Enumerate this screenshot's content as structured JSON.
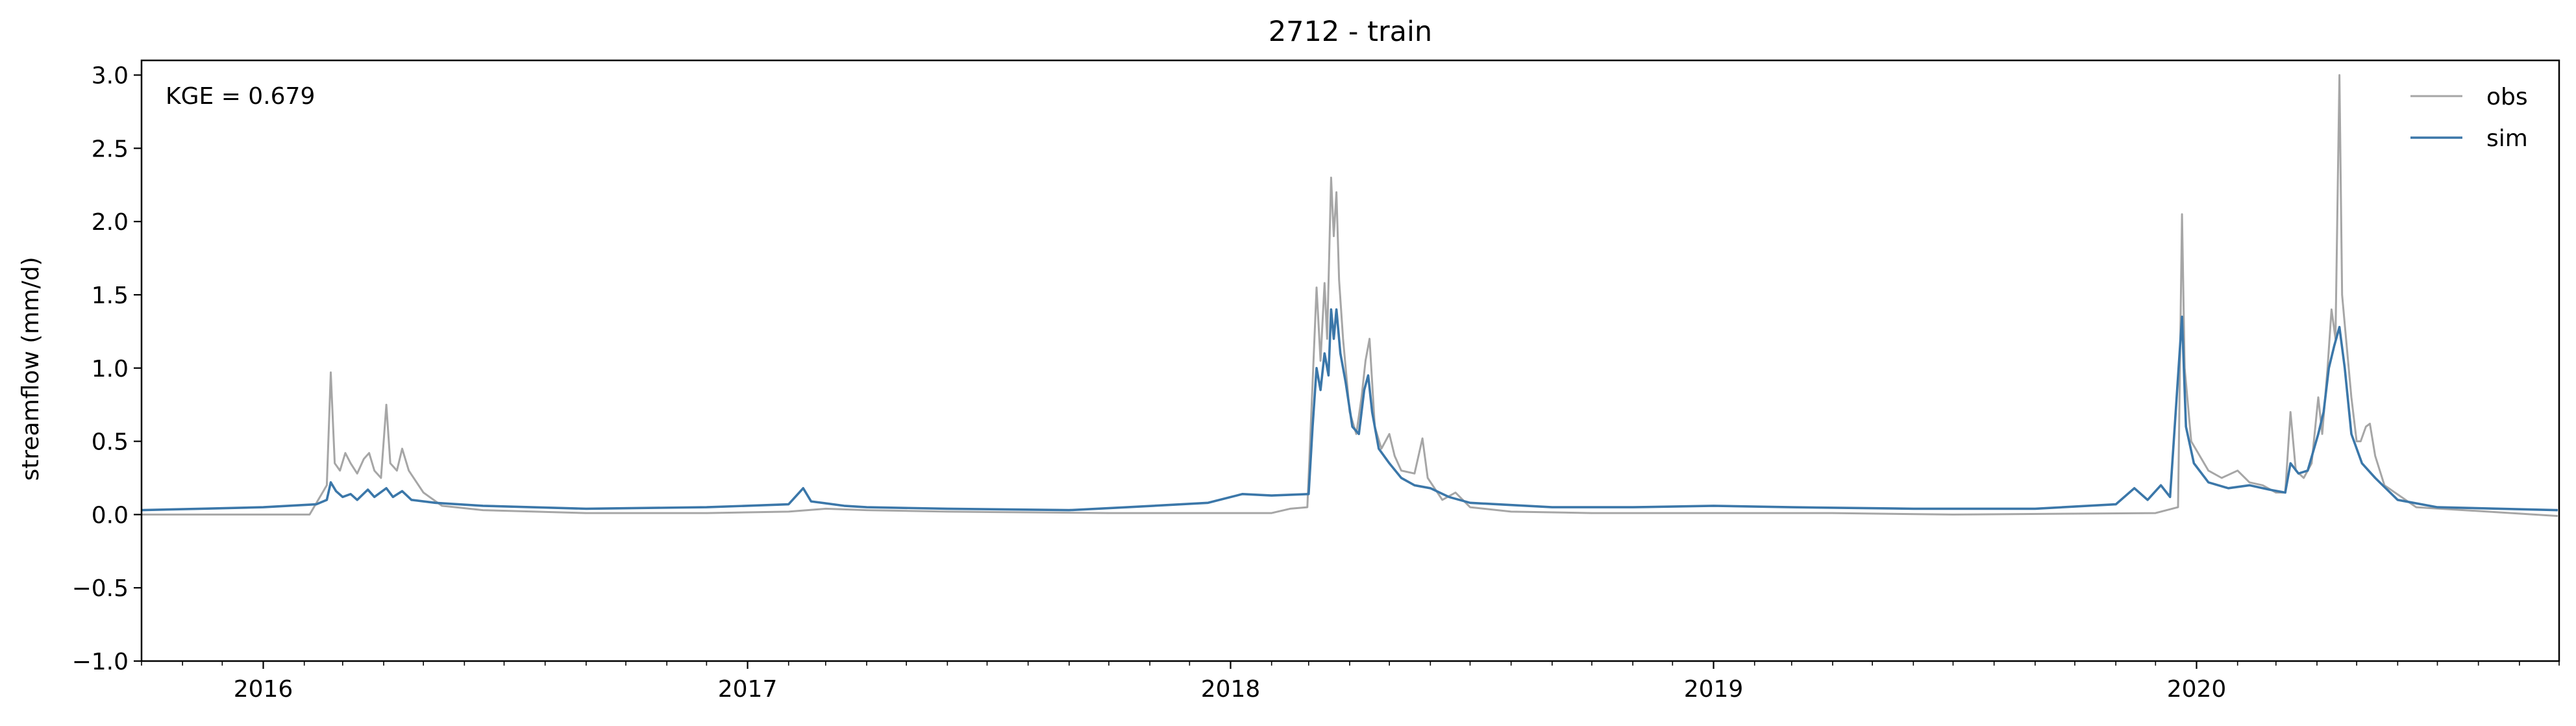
{
  "chart_data": {
    "type": "line",
    "title": "2712 - train",
    "xlabel": "",
    "ylabel": "streamflow (mm/d)",
    "annotation": "KGE = 0.679",
    "xlim": [
      "2015-10-01",
      "2020-09-30"
    ],
    "ylim": [
      -1.0,
      3.1
    ],
    "yticks": [
      -1.0,
      -0.5,
      0.0,
      0.5,
      1.0,
      1.5,
      2.0,
      2.5,
      3.0
    ],
    "ytick_labels": [
      "−1.0",
      "−0.5",
      "0.0",
      "0.5",
      "1.0",
      "1.5",
      "2.0",
      "2.5",
      "3.0"
    ],
    "xticks": [
      "2016-01-01",
      "2017-01-01",
      "2018-01-01",
      "2019-01-01",
      "2020-01-01"
    ],
    "xtick_labels": [
      "2016",
      "2017",
      "2018",
      "2019",
      "2020"
    ],
    "minor_xticks_monthly": true,
    "grid": false,
    "legend_position": "top-right",
    "series": [
      {
        "name": "obs",
        "color": "#a6a6a6",
        "points": [
          [
            "2015-10-01",
            0.0
          ],
          [
            "2016-01-20",
            0.0
          ],
          [
            "2016-02-05",
            0.0
          ],
          [
            "2016-02-18",
            0.2
          ],
          [
            "2016-02-21",
            0.97
          ],
          [
            "2016-02-24",
            0.35
          ],
          [
            "2016-02-28",
            0.3
          ],
          [
            "2016-03-03",
            0.42
          ],
          [
            "2016-03-07",
            0.35
          ],
          [
            "2016-03-12",
            0.28
          ],
          [
            "2016-03-17",
            0.38
          ],
          [
            "2016-03-21",
            0.42
          ],
          [
            "2016-03-25",
            0.3
          ],
          [
            "2016-03-30",
            0.25
          ],
          [
            "2016-04-03",
            0.75
          ],
          [
            "2016-04-06",
            0.35
          ],
          [
            "2016-04-11",
            0.3
          ],
          [
            "2016-04-15",
            0.45
          ],
          [
            "2016-04-20",
            0.3
          ],
          [
            "2016-05-01",
            0.15
          ],
          [
            "2016-05-15",
            0.06
          ],
          [
            "2016-06-15",
            0.03
          ],
          [
            "2016-09-01",
            0.01
          ],
          [
            "2016-12-01",
            0.01
          ],
          [
            "2017-02-01",
            0.02
          ],
          [
            "2017-03-01",
            0.04
          ],
          [
            "2017-04-01",
            0.03
          ],
          [
            "2017-06-01",
            0.02
          ],
          [
            "2017-10-01",
            0.01
          ],
          [
            "2018-01-01",
            0.01
          ],
          [
            "2018-02-01",
            0.01
          ],
          [
            "2018-02-15",
            0.04
          ],
          [
            "2018-02-28",
            0.05
          ],
          [
            "2018-03-04",
            0.9
          ],
          [
            "2018-03-07",
            1.55
          ],
          [
            "2018-03-10",
            1.05
          ],
          [
            "2018-03-13",
            1.58
          ],
          [
            "2018-03-15",
            1.2
          ],
          [
            "2018-03-18",
            2.3
          ],
          [
            "2018-03-20",
            1.9
          ],
          [
            "2018-03-22",
            2.2
          ],
          [
            "2018-03-24",
            1.6
          ],
          [
            "2018-03-27",
            1.2
          ],
          [
            "2018-04-01",
            0.7
          ],
          [
            "2018-04-06",
            0.55
          ],
          [
            "2018-04-10",
            0.8
          ],
          [
            "2018-04-13",
            1.05
          ],
          [
            "2018-04-16",
            1.2
          ],
          [
            "2018-04-20",
            0.6
          ],
          [
            "2018-04-25",
            0.45
          ],
          [
            "2018-05-01",
            0.55
          ],
          [
            "2018-05-05",
            0.4
          ],
          [
            "2018-05-10",
            0.3
          ],
          [
            "2018-05-20",
            0.28
          ],
          [
            "2018-05-26",
            0.52
          ],
          [
            "2018-05-30",
            0.25
          ],
          [
            "2018-06-10",
            0.1
          ],
          [
            "2018-06-20",
            0.15
          ],
          [
            "2018-07-01",
            0.05
          ],
          [
            "2018-08-01",
            0.02
          ],
          [
            "2018-10-01",
            0.01
          ],
          [
            "2019-01-01",
            0.01
          ],
          [
            "2019-04-01",
            0.01
          ],
          [
            "2019-07-01",
            0.0
          ],
          [
            "2019-12-01",
            0.01
          ],
          [
            "2019-12-18",
            0.05
          ],
          [
            "2019-12-21",
            2.05
          ],
          [
            "2019-12-23",
            1.0
          ],
          [
            "2019-12-28",
            0.5
          ],
          [
            "2020-01-10",
            0.3
          ],
          [
            "2020-01-20",
            0.25
          ],
          [
            "2020-02-01",
            0.3
          ],
          [
            "2020-02-10",
            0.22
          ],
          [
            "2020-02-20",
            0.2
          ],
          [
            "2020-03-01",
            0.15
          ],
          [
            "2020-03-08",
            0.15
          ],
          [
            "2020-03-12",
            0.7
          ],
          [
            "2020-03-16",
            0.3
          ],
          [
            "2020-03-22",
            0.25
          ],
          [
            "2020-03-28",
            0.35
          ],
          [
            "2020-04-02",
            0.8
          ],
          [
            "2020-04-05",
            0.55
          ],
          [
            "2020-04-09",
            1.0
          ],
          [
            "2020-04-12",
            1.4
          ],
          [
            "2020-04-15",
            1.2
          ],
          [
            "2020-04-18",
            3.0
          ],
          [
            "2020-04-20",
            1.5
          ],
          [
            "2020-04-23",
            1.2
          ],
          [
            "2020-04-27",
            0.8
          ],
          [
            "2020-05-01",
            0.5
          ],
          [
            "2020-05-04",
            0.5
          ],
          [
            "2020-05-08",
            0.6
          ],
          [
            "2020-05-11",
            0.62
          ],
          [
            "2020-05-15",
            0.4
          ],
          [
            "2020-05-22",
            0.2
          ],
          [
            "2020-06-15",
            0.05
          ],
          [
            "2020-09-30",
            -0.01
          ]
        ]
      },
      {
        "name": "sim",
        "color": "#3b77a9",
        "points": [
          [
            "2015-10-01",
            0.03
          ],
          [
            "2015-11-15",
            0.04
          ],
          [
            "2016-01-01",
            0.05
          ],
          [
            "2016-02-10",
            0.07
          ],
          [
            "2016-02-18",
            0.1
          ],
          [
            "2016-02-21",
            0.22
          ],
          [
            "2016-02-25",
            0.16
          ],
          [
            "2016-03-01",
            0.12
          ],
          [
            "2016-03-07",
            0.14
          ],
          [
            "2016-03-12",
            0.1
          ],
          [
            "2016-03-20",
            0.17
          ],
          [
            "2016-03-25",
            0.12
          ],
          [
            "2016-04-03",
            0.18
          ],
          [
            "2016-04-08",
            0.12
          ],
          [
            "2016-04-15",
            0.16
          ],
          [
            "2016-04-22",
            0.1
          ],
          [
            "2016-05-10",
            0.08
          ],
          [
            "2016-06-15",
            0.06
          ],
          [
            "2016-09-01",
            0.04
          ],
          [
            "2016-12-01",
            0.05
          ],
          [
            "2017-02-01",
            0.07
          ],
          [
            "2017-02-12",
            0.18
          ],
          [
            "2017-02-18",
            0.09
          ],
          [
            "2017-03-15",
            0.06
          ],
          [
            "2017-04-01",
            0.05
          ],
          [
            "2017-06-01",
            0.04
          ],
          [
            "2017-09-01",
            0.03
          ],
          [
            "2017-10-15",
            0.05
          ],
          [
            "2017-12-15",
            0.08
          ],
          [
            "2018-01-10",
            0.14
          ],
          [
            "2018-02-01",
            0.13
          ],
          [
            "2018-03-01",
            0.14
          ],
          [
            "2018-03-04",
            0.6
          ],
          [
            "2018-03-07",
            1.0
          ],
          [
            "2018-03-10",
            0.85
          ],
          [
            "2018-03-13",
            1.1
          ],
          [
            "2018-03-16",
            0.95
          ],
          [
            "2018-03-18",
            1.4
          ],
          [
            "2018-03-20",
            1.2
          ],
          [
            "2018-03-22",
            1.4
          ],
          [
            "2018-03-25",
            1.1
          ],
          [
            "2018-03-29",
            0.9
          ],
          [
            "2018-04-03",
            0.6
          ],
          [
            "2018-04-08",
            0.55
          ],
          [
            "2018-04-12",
            0.85
          ],
          [
            "2018-04-15",
            0.95
          ],
          [
            "2018-04-18",
            0.7
          ],
          [
            "2018-04-23",
            0.45
          ],
          [
            "2018-05-01",
            0.35
          ],
          [
            "2018-05-10",
            0.25
          ],
          [
            "2018-05-20",
            0.2
          ],
          [
            "2018-06-01",
            0.18
          ],
          [
            "2018-06-15",
            0.12
          ],
          [
            "2018-07-01",
            0.08
          ],
          [
            "2018-09-01",
            0.05
          ],
          [
            "2018-11-01",
            0.05
          ],
          [
            "2019-01-01",
            0.06
          ],
          [
            "2019-03-01",
            0.05
          ],
          [
            "2019-06-01",
            0.04
          ],
          [
            "2019-09-01",
            0.04
          ],
          [
            "2019-11-01",
            0.07
          ],
          [
            "2019-11-15",
            0.18
          ],
          [
            "2019-11-25",
            0.1
          ],
          [
            "2019-12-05",
            0.2
          ],
          [
            "2019-12-12",
            0.12
          ],
          [
            "2019-12-21",
            1.35
          ],
          [
            "2019-12-24",
            0.6
          ],
          [
            "2019-12-30",
            0.35
          ],
          [
            "2020-01-10",
            0.22
          ],
          [
            "2020-01-25",
            0.18
          ],
          [
            "2020-02-10",
            0.2
          ],
          [
            "2020-02-25",
            0.17
          ],
          [
            "2020-03-08",
            0.15
          ],
          [
            "2020-03-12",
            0.35
          ],
          [
            "2020-03-18",
            0.28
          ],
          [
            "2020-03-25",
            0.3
          ],
          [
            "2020-04-02",
            0.55
          ],
          [
            "2020-04-06",
            0.7
          ],
          [
            "2020-04-10",
            1.0
          ],
          [
            "2020-04-14",
            1.15
          ],
          [
            "2020-04-18",
            1.28
          ],
          [
            "2020-04-22",
            1.0
          ],
          [
            "2020-04-27",
            0.55
          ],
          [
            "2020-05-05",
            0.35
          ],
          [
            "2020-05-15",
            0.25
          ],
          [
            "2020-06-01",
            0.1
          ],
          [
            "2020-07-01",
            0.05
          ],
          [
            "2020-09-30",
            0.03
          ]
        ]
      }
    ]
  }
}
